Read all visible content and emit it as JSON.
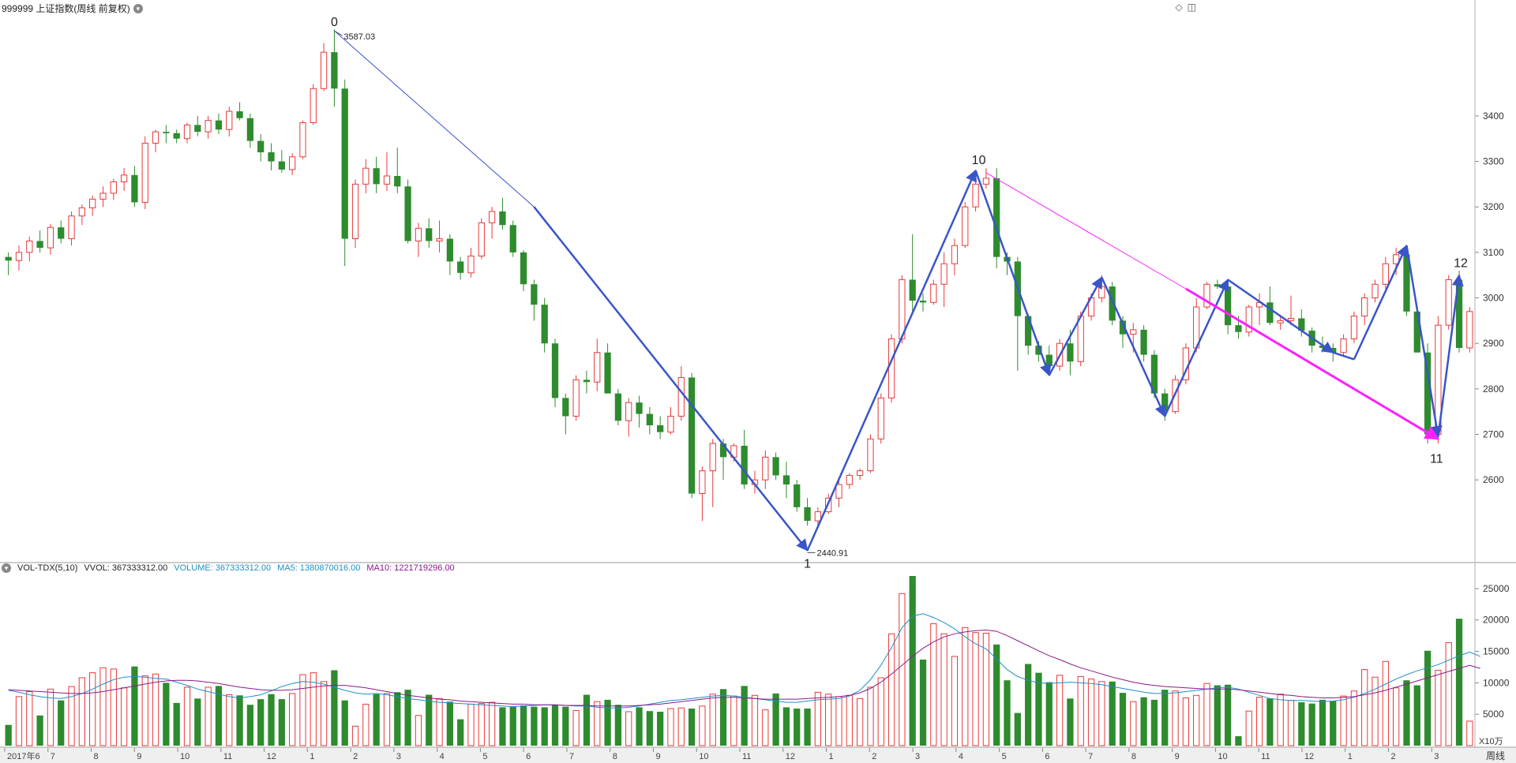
{
  "header": {
    "title": "999999 上证指数(周线 前复权)",
    "menu_icon": "chevron-down-icon",
    "corner_icons": [
      "diamond-icon",
      "panel-toggle-icon"
    ]
  },
  "price_panel": {
    "axis_ticks": [
      "3400",
      "3300",
      "3200",
      "3100",
      "3000",
      "2900",
      "2800",
      "2700",
      "2600"
    ],
    "high_label": "3587.03",
    "low_label": "2440.91",
    "wave_labels": [
      "0",
      "1",
      "10",
      "11",
      "12"
    ],
    "colors": {
      "up": "#e8393b",
      "down": "#2e8b2e",
      "trend": "#3a55c8",
      "pink": "#ff20ff"
    }
  },
  "volume_panel": {
    "title": "VOL-TDX(5,10)",
    "vvol_label": "VVOL: 367333312.00",
    "volume_label": "VOLUME: 367333312.00",
    "ma5_label": "MA5: 1380870016.00",
    "ma10_label": "MA10: 1221719296.00",
    "axis_ticks": [
      "25000",
      "20000",
      "15000",
      "10000",
      "5000"
    ],
    "unit": "X10万",
    "colors": {
      "volume": "#1e90c8",
      "ma5": "#1e90c8",
      "ma10": "#8b1a8b"
    }
  },
  "time_axis": {
    "labels": [
      "2017年6",
      "7",
      "8",
      "9",
      "10",
      "11",
      "12",
      "1",
      "2",
      "3",
      "4",
      "5",
      "6",
      "7",
      "8",
      "9",
      "10",
      "11",
      "12",
      "1",
      "2",
      "3",
      "4",
      "5",
      "6",
      "7",
      "8",
      "9",
      "10",
      "11",
      "12",
      "1",
      "2",
      "3"
    ],
    "period": "周线"
  },
  "chart_data": {
    "type": "candlestick",
    "ylim": [
      2420,
      3620
    ],
    "volume_ylim": [
      0,
      27000
    ],
    "candles": [
      [
        3090,
        3100,
        3050,
        3082,
        3300
      ],
      [
        3082,
        3115,
        3060,
        3100,
        7800
      ],
      [
        3100,
        3135,
        3080,
        3125,
        8600
      ],
      [
        3125,
        3148,
        3100,
        3110,
        4800
      ],
      [
        3110,
        3162,
        3095,
        3155,
        9000
      ],
      [
        3155,
        3170,
        3120,
        3130,
        7200
      ],
      [
        3130,
        3190,
        3115,
        3180,
        9400
      ],
      [
        3180,
        3205,
        3160,
        3198,
        10800
      ],
      [
        3198,
        3225,
        3180,
        3217,
        11600
      ],
      [
        3217,
        3245,
        3200,
        3230,
        12400
      ],
      [
        3230,
        3262,
        3215,
        3255,
        12200
      ],
      [
        3255,
        3285,
        3235,
        3270,
        9200
      ],
      [
        3270,
        3290,
        3200,
        3210,
        12600
      ],
      [
        3210,
        3355,
        3195,
        3340,
        11100
      ],
      [
        3340,
        3370,
        3320,
        3365,
        11400
      ],
      [
        3365,
        3380,
        3340,
        3362,
        10000
      ],
      [
        3362,
        3370,
        3340,
        3350,
        6800
      ],
      [
        3350,
        3385,
        3340,
        3380,
        9300
      ],
      [
        3380,
        3400,
        3355,
        3365,
        7500
      ],
      [
        3365,
        3400,
        3350,
        3390,
        9300
      ],
      [
        3390,
        3405,
        3360,
        3370,
        9500
      ],
      [
        3370,
        3420,
        3355,
        3410,
        8100
      ],
      [
        3410,
        3430,
        3390,
        3395,
        8000
      ],
      [
        3395,
        3405,
        3330,
        3345,
        6500
      ],
      [
        3345,
        3360,
        3300,
        3320,
        7400
      ],
      [
        3320,
        3340,
        3280,
        3300,
        8200
      ],
      [
        3300,
        3325,
        3275,
        3282,
        7400
      ],
      [
        3282,
        3318,
        3270,
        3310,
        8300
      ],
      [
        3310,
        3390,
        3305,
        3385,
        11300
      ],
      [
        3385,
        3470,
        3380,
        3460,
        11600
      ],
      [
        3460,
        3560,
        3455,
        3540,
        10200
      ],
      [
        3540,
        3590,
        3420,
        3460,
        12000
      ],
      [
        3460,
        3480,
        3070,
        3130,
        7200
      ],
      [
        3130,
        3260,
        3110,
        3250,
        3100
      ],
      [
        3250,
        3305,
        3230,
        3285,
        6600
      ],
      [
        3285,
        3310,
        3230,
        3250,
        8200
      ],
      [
        3250,
        3320,
        3235,
        3268,
        8300
      ],
      [
        3268,
        3330,
        3230,
        3245,
        8500
      ],
      [
        3245,
        3260,
        3120,
        3125,
        8900
      ],
      [
        3125,
        3165,
        3090,
        3153,
        4800
      ],
      [
        3153,
        3175,
        3110,
        3125,
        8100
      ],
      [
        3125,
        3170,
        3100,
        3130,
        7500
      ],
      [
        3130,
        3140,
        3050,
        3080,
        7000
      ],
      [
        3080,
        3090,
        3040,
        3055,
        4200
      ],
      [
        3055,
        3110,
        3045,
        3092,
        6600
      ],
      [
        3092,
        3175,
        3085,
        3165,
        6700
      ],
      [
        3165,
        3200,
        3130,
        3190,
        6900
      ],
      [
        3190,
        3220,
        3150,
        3160,
        6100
      ],
      [
        3160,
        3170,
        3090,
        3100,
        6200
      ],
      [
        3100,
        3105,
        3015,
        3030,
        6400
      ],
      [
        3030,
        3040,
        2950,
        2985,
        6200
      ],
      [
        2985,
        3000,
        2880,
        2900,
        6100
      ],
      [
        2900,
        2910,
        2760,
        2780,
        6500
      ],
      [
        2780,
        2790,
        2700,
        2740,
        6200
      ],
      [
        2740,
        2830,
        2730,
        2820,
        5600
      ],
      [
        2820,
        2840,
        2790,
        2815,
        8100
      ],
      [
        2815,
        2910,
        2795,
        2880,
        7000
      ],
      [
        2880,
        2900,
        2790,
        2790,
        7300
      ],
      [
        2790,
        2800,
        2720,
        2730,
        6500
      ],
      [
        2730,
        2780,
        2695,
        2770,
        5400
      ],
      [
        2770,
        2785,
        2715,
        2745,
        6100
      ],
      [
        2745,
        2760,
        2700,
        2720,
        5500
      ],
      [
        2720,
        2740,
        2690,
        2705,
        5400
      ],
      [
        2705,
        2760,
        2700,
        2740,
        5900
      ],
      [
        2740,
        2850,
        2730,
        2825,
        6000
      ],
      [
        2825,
        2835,
        2560,
        2570,
        5900
      ],
      [
        2570,
        2630,
        2510,
        2620,
        6300
      ],
      [
        2620,
        2690,
        2540,
        2680,
        8200
      ],
      [
        2680,
        2690,
        2600,
        2650,
        9000
      ],
      [
        2650,
        2680,
        2640,
        2675,
        7900
      ],
      [
        2675,
        2710,
        2580,
        2590,
        9500
      ],
      [
        2590,
        2620,
        2570,
        2600,
        8000
      ],
      [
        2600,
        2665,
        2580,
        2650,
        5700
      ],
      [
        2650,
        2660,
        2600,
        2610,
        8300
      ],
      [
        2610,
        2640,
        2560,
        2590,
        6100
      ],
      [
        2590,
        2600,
        2530,
        2540,
        5900
      ],
      [
        2540,
        2560,
        2500,
        2510,
        5900
      ],
      [
        2510,
        2540,
        2495,
        2530,
        8500
      ],
      [
        2530,
        2570,
        2525,
        2560,
        8200
      ],
      [
        2560,
        2600,
        2540,
        2590,
        7800
      ],
      [
        2590,
        2615,
        2580,
        2610,
        8000
      ],
      [
        2610,
        2625,
        2600,
        2620,
        7500
      ],
      [
        2620,
        2700,
        2615,
        2690,
        9300
      ],
      [
        2690,
        2790,
        2680,
        2780,
        10800
      ],
      [
        2780,
        2920,
        2770,
        2910,
        17800
      ],
      [
        2910,
        3050,
        2900,
        3040,
        24200
      ],
      [
        3040,
        3140,
        2970,
        2994,
        27000
      ],
      [
        2994,
        3010,
        2970,
        2990,
        13700
      ],
      [
        2990,
        3040,
        2985,
        3030,
        19400
      ],
      [
        3030,
        3100,
        2980,
        3075,
        17800
      ],
      [
        3075,
        3130,
        3050,
        3115,
        14200
      ],
      [
        3115,
        3210,
        3110,
        3200,
        18800
      ],
      [
        3200,
        3280,
        3190,
        3250,
        18000
      ],
      [
        3250,
        3285,
        3240,
        3263,
        17900
      ],
      [
        3263,
        3285,
        3065,
        3090,
        16100
      ],
      [
        3090,
        3100,
        3050,
        3080,
        10400
      ],
      [
        3080,
        3090,
        2840,
        2960,
        5200
      ],
      [
        2960,
        2965,
        2875,
        2895,
        13000
      ],
      [
        2895,
        2905,
        2860,
        2875,
        11600
      ],
      [
        2875,
        2895,
        2840,
        2850,
        10100
      ],
      [
        2850,
        2910,
        2840,
        2900,
        11200
      ],
      [
        2900,
        2930,
        2830,
        2860,
        7500
      ],
      [
        2860,
        2970,
        2850,
        2960,
        11000
      ],
      [
        2960,
        3010,
        2950,
        3000,
        10600
      ],
      [
        3000,
        3050,
        2990,
        3025,
        10200
      ],
      [
        3025,
        3035,
        2940,
        2950,
        10200
      ],
      [
        2950,
        2960,
        2890,
        2920,
        8400
      ],
      [
        2920,
        2945,
        2880,
        2930,
        7000
      ],
      [
        2930,
        2940,
        2860,
        2875,
        7700
      ],
      [
        2875,
        2885,
        2780,
        2790,
        7300
      ],
      [
        2790,
        2800,
        2730,
        2750,
        8900
      ],
      [
        2750,
        2830,
        2745,
        2820,
        8700
      ],
      [
        2820,
        2900,
        2810,
        2890,
        7600
      ],
      [
        2890,
        3000,
        2880,
        2980,
        8000
      ],
      [
        2980,
        3035,
        2975,
        3030,
        9900
      ],
      [
        3030,
        3040,
        3020,
        3025,
        9600
      ],
      [
        3025,
        3035,
        2920,
        2940,
        9700
      ],
      [
        2940,
        2960,
        2910,
        2925,
        1500
      ],
      [
        2925,
        2985,
        2915,
        2980,
        5500
      ],
      [
        2980,
        3010,
        2940,
        2990,
        7700
      ],
      [
        2990,
        3025,
        2940,
        2945,
        7500
      ],
      [
        2945,
        2960,
        2930,
        2950,
        8200
      ],
      [
        2950,
        3005,
        2940,
        2955,
        7200
      ],
      [
        2955,
        2975,
        2915,
        2928,
        6900
      ],
      [
        2928,
        2935,
        2880,
        2895,
        6700
      ],
      [
        2895,
        2915,
        2880,
        2890,
        7300
      ],
      [
        2890,
        2900,
        2860,
        2880,
        7100
      ],
      [
        2880,
        2920,
        2870,
        2910,
        7900
      ],
      [
        2910,
        2970,
        2900,
        2960,
        8700
      ],
      [
        2960,
        3010,
        2940,
        3000,
        12100
      ],
      [
        3000,
        3040,
        2990,
        3030,
        10900
      ],
      [
        3030,
        3090,
        3020,
        3075,
        13400
      ],
      [
        3075,
        3110,
        3050,
        3095,
        9200
      ],
      [
        3095,
        3100,
        2960,
        2970,
        10400
      ],
      [
        2970,
        2975,
        2880,
        2880,
        9600
      ],
      [
        2880,
        2900,
        2680,
        2700,
        15100
      ],
      [
        2700,
        2960,
        2680,
        2940,
        12000
      ],
      [
        2940,
        3050,
        2930,
        3040,
        16400
      ],
      [
        3040,
        3060,
        2880,
        2890,
        20200
      ],
      [
        2890,
        2980,
        2880,
        2970,
        3900
      ]
    ],
    "ma5": [
      8800,
      8500,
      8100,
      7800,
      7600,
      7500,
      7800,
      8300,
      9000,
      9800,
      10500,
      10900,
      11000,
      10900,
      10700,
      10600,
      10100,
      9600,
      9000,
      8600,
      8200,
      7800,
      7600,
      7800,
      8100,
      8700,
      9400,
      9900,
      10200,
      10100,
      9800,
      9300,
      8800,
      8400,
      8200,
      8300,
      8100,
      7800,
      7500,
      7300,
      7100,
      6900,
      6800,
      6700,
      6600,
      6500,
      6400,
      6300,
      6200,
      6300,
      6400,
      6500,
      6500,
      6400,
      6300,
      6300,
      6100,
      6000,
      6000,
      6100,
      6300,
      6600,
      6900,
      7200,
      7300,
      7500,
      7700,
      7900,
      8000,
      7900,
      7700,
      7500,
      7300,
      7100,
      6900,
      6900,
      7100,
      7300,
      7400,
      7500,
      7900,
      8800,
      10500,
      12800,
      15600,
      18800,
      20600,
      21000,
      20400,
      19600,
      18600,
      17300,
      16200,
      15400,
      13800,
      12100,
      11000,
      10400,
      10000,
      9900,
      10000,
      10100,
      10000,
      9900,
      9700,
      9400,
      9100,
      8800,
      8500,
      8300,
      8300,
      8400,
      8600,
      8800,
      9000,
      9200,
      9300,
      9000,
      8500,
      8000,
      7500,
      7300,
      7200,
      7200,
      7100,
      7000,
      7100,
      7300,
      7700,
      8300,
      9000,
      9800,
      10600,
      11300,
      11900,
      12400,
      12900,
      13600,
      14300,
      14900,
      14200
    ],
    "ma10": [
      8900,
      8800,
      8700,
      8600,
      8500,
      8400,
      8300,
      8300,
      8400,
      8600,
      8900,
      9200,
      9500,
      9800,
      10100,
      10300,
      10400,
      10400,
      10300,
      10100,
      9900,
      9600,
      9300,
      9100,
      8900,
      8800,
      8800,
      8900,
      9100,
      9300,
      9500,
      9600,
      9600,
      9400,
      9200,
      8900,
      8600,
      8300,
      8000,
      7800,
      7600,
      7400,
      7300,
      7100,
      7000,
      6900,
      6800,
      6700,
      6600,
      6600,
      6500,
      6500,
      6500,
      6400,
      6400,
      6400,
      6300,
      6300,
      6300,
      6300,
      6400,
      6500,
      6600,
      6800,
      7000,
      7200,
      7400,
      7600,
      7700,
      7700,
      7600,
      7500,
      7400,
      7400,
      7400,
      7400,
      7500,
      7600,
      7700,
      7800,
      8000,
      8400,
      9100,
      10100,
      11400,
      12800,
      14200,
      15500,
      16500,
      17300,
      17800,
      18100,
      18300,
      18400,
      18200,
      17500,
      16700,
      15900,
      15100,
      14300,
      13700,
      13000,
      12400,
      11900,
      11400,
      10900,
      10500,
      10100,
      9800,
      9600,
      9400,
      9300,
      9200,
      9100,
      9000,
      9000,
      9000,
      8900,
      8700,
      8500,
      8300,
      8100,
      8000,
      7800,
      7700,
      7600,
      7600,
      7700,
      7800,
      8100,
      8400,
      8800,
      9300,
      9800,
      10300,
      10800,
      11300,
      11800,
      12300,
      12800,
      12300
    ]
  }
}
